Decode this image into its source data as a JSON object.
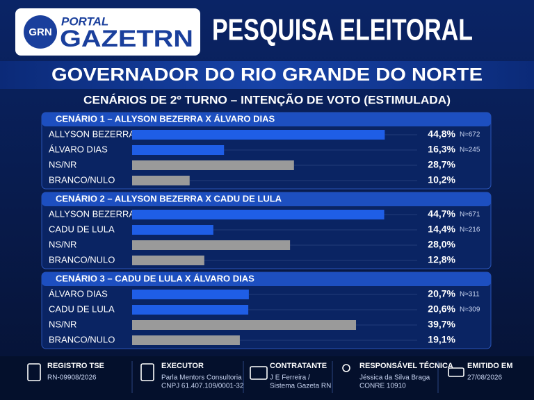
{
  "header": {
    "logo_badge": "GRN",
    "logo_top": "PORTAL",
    "logo_main": "GAZETRN",
    "title": "PESQUISA ELEITORAL",
    "subtitle": "GOVERNADOR DO RIO GRANDE DO NORTE",
    "caption": "CENÁRIOS DE 2º TURNO – INTENÇÃO DE VOTO (ESTIMULADA)"
  },
  "chart_data": [
    {
      "type": "bar",
      "orientation": "horizontal",
      "title": "CENÁRIO 1 – ALLYSON BEZERRA X ÁLVARO DIAS",
      "categories": [
        "ALLYSON BEZERRA",
        "ÁLVARO DIAS",
        "NS/NR",
        "BRANCO/NULO"
      ],
      "values": [
        44.8,
        16.3,
        28.7,
        10.2
      ],
      "value_labels": [
        "44,8%",
        "16,3%",
        "28,7%",
        "10,2%"
      ],
      "sample_labels": [
        "N≈672",
        "N≈245",
        null,
        null
      ],
      "colors": [
        "#1f5ee6",
        "#1f5ee6",
        "#9a9a9a",
        "#9a9a9a"
      ],
      "xlim": [
        0,
        45
      ]
    },
    {
      "type": "bar",
      "orientation": "horizontal",
      "title": "CENÁRIO 2 – ALLYSON BEZERRA X CADU DE LULA",
      "categories": [
        "ALLYSON BEZERRA",
        "CADU DE LULA",
        "NS/NR",
        "BRANCO/NULO"
      ],
      "values": [
        44.7,
        14.4,
        28.0,
        12.8
      ],
      "value_labels": [
        "44,7%",
        "14,4%",
        "28,0%",
        "12,8%"
      ],
      "sample_labels": [
        "N≈671",
        "N≈216",
        null,
        null
      ],
      "colors": [
        "#1f5ee6",
        "#1f5ee6",
        "#9a9a9a",
        "#9a9a9a"
      ],
      "xlim": [
        0,
        45
      ]
    },
    {
      "type": "bar",
      "orientation": "horizontal",
      "title": "CENÁRIO 3 – CADU DE LULA X ÁLVARO DIAS",
      "categories": [
        "ÁLVARO DIAS",
        "CADU DE LULA",
        "NS/NR",
        "BRANCO/NULO"
      ],
      "values": [
        20.7,
        20.6,
        39.7,
        19.1
      ],
      "value_labels": [
        "20,7%",
        "20,6%",
        "39,7%",
        "19,1%"
      ],
      "sample_labels": [
        "N≈311",
        "N≈309",
        null,
        null
      ],
      "colors": [
        "#1f5ee6",
        "#1f5ee6",
        "#9a9a9a",
        "#9a9a9a"
      ],
      "xlim": [
        0,
        45
      ]
    }
  ],
  "footer": [
    {
      "title": "REGISTRO TSE",
      "lines": [
        "RN-09908/2026"
      ]
    },
    {
      "title": "EXECUTOR",
      "lines": [
        "Parla Mentors Consultoria",
        "CNPJ 61.407.109/0001-32"
      ]
    },
    {
      "title": "CONTRATANTE",
      "lines": [
        "J E Ferreira /",
        "Sistema Gazeta RN"
      ]
    },
    {
      "title": "RESPONSÁVEL TÉCNICA",
      "lines": [
        "Jéssica da Silva Braga",
        "CONRE 10910"
      ]
    },
    {
      "title": "EMITIDO EM",
      "lines": [
        "27/08/2026"
      ]
    }
  ]
}
